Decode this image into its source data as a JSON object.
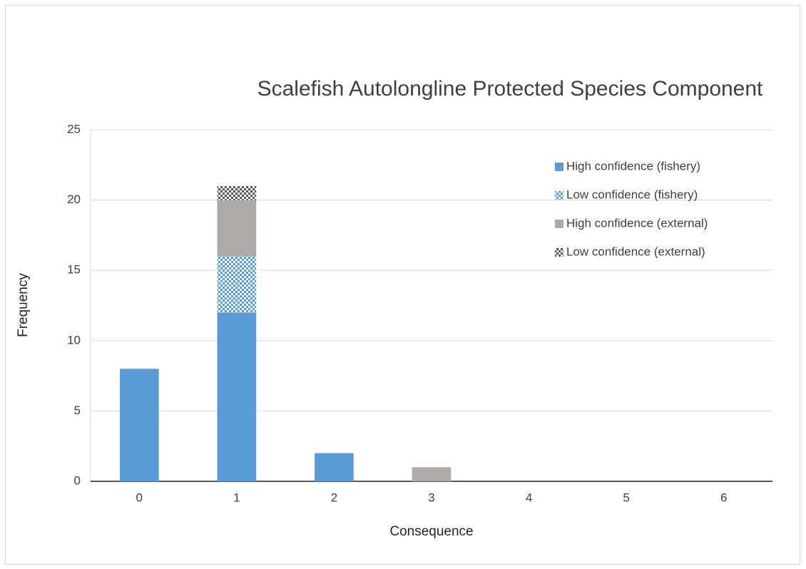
{
  "chart_data": {
    "type": "stacked_bar",
    "title": "Scalefish Autolongline Protected Species Component",
    "x_label": "Consequence",
    "y_label": "Frequency",
    "categories": [
      "0",
      "1",
      "2",
      "3",
      "4",
      "5",
      "6"
    ],
    "series": [
      {
        "name": "High confidence (fishery)",
        "color": "#5b9bd5",
        "fill_style": "solid",
        "values": [
          8,
          12,
          2,
          0,
          0,
          0,
          0
        ]
      },
      {
        "name": "Low confidence (fishery)",
        "color": "#5b9bd5",
        "fill_style": "pattern",
        "values": [
          0,
          4,
          0,
          0,
          0,
          0,
          0
        ]
      },
      {
        "name": "High confidence (external)",
        "color": "#aeaaaa",
        "fill_style": "solid",
        "values": [
          0,
          4,
          0,
          1,
          0,
          0,
          0
        ]
      },
      {
        "name": "Low confidence (external)",
        "color": "#595959",
        "fill_style": "pattern",
        "values": [
          0,
          1,
          0,
          0,
          0,
          0,
          0
        ]
      }
    ],
    "ylim": [
      0,
      25
    ],
    "yticks": [
      0,
      5,
      10,
      15,
      20,
      25
    ],
    "grid": true,
    "legend": "top-right"
  }
}
